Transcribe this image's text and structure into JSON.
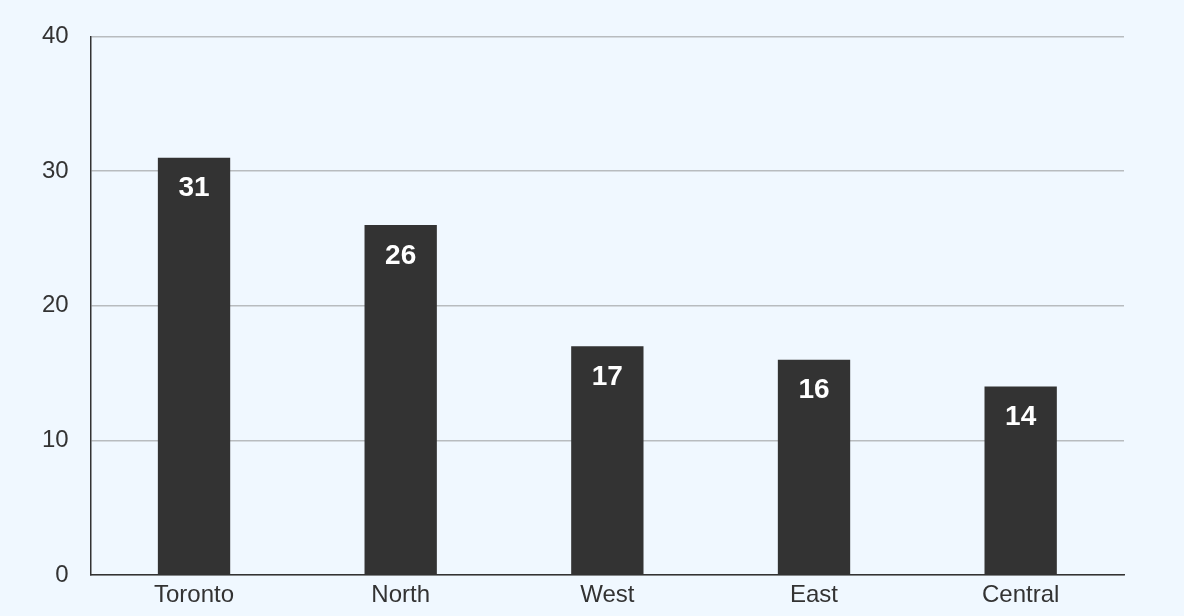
{
  "chart_data": {
    "type": "bar",
    "categories": [
      "Toronto",
      "North",
      "West",
      "East",
      "Central"
    ],
    "values": [
      31,
      26,
      17,
      16,
      14
    ],
    "color": "#333333",
    "ylim": [
      0,
      40
    ],
    "yticks": [
      0,
      10,
      20,
      30,
      40
    ],
    "grid": true,
    "data_labels": true
  }
}
